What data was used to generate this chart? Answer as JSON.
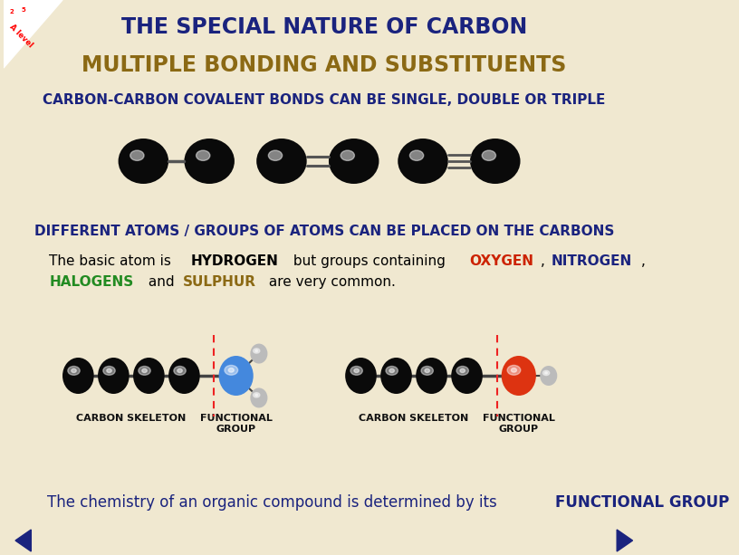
{
  "bg_color": "#f0e8d0",
  "title1": "THE SPECIAL NATURE OF CARBON",
  "title1_color": "#1a237e",
  "title2": "MULTIPLE BONDING AND SUBSTITUENTS",
  "title2_color": "#8b6914",
  "subtitle1": "CARBON-CARBON COVALENT BONDS CAN BE SINGLE, DOUBLE OR TRIPLE",
  "subtitle1_color": "#1a237e",
  "subtitle2": "DIFFERENT ATOMS / GROUPS OF ATOMS CAN BE PLACED ON THE CARBONS",
  "subtitle2_color": "#1a237e",
  "carbon_color": "#0a0a0a",
  "hydrogen_color": "#bbbbbb",
  "nitrogen_color": "#4488dd",
  "oxygen_color": "#dd3311",
  "bottom_color": "#1a237e",
  "text_black": "#000000",
  "text_green": "#228b22",
  "text_red": "#cc2200",
  "text_blue": "#1a237e",
  "text_brown": "#8b6914"
}
